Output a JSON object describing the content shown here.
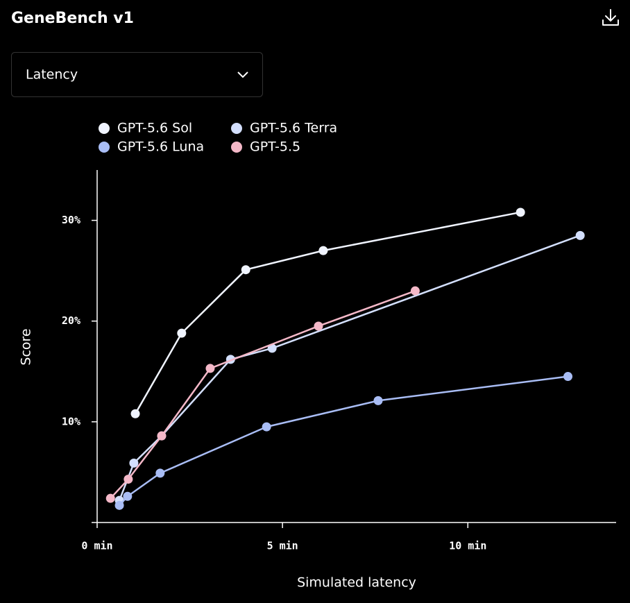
{
  "header": {
    "title": "GeneBench v1"
  },
  "dropdown": {
    "label": "Latency"
  },
  "chart_data": {
    "type": "line",
    "x_label": "Simulated latency",
    "y_label": "Score",
    "xlim": [
      0,
      14
    ],
    "ylim": [
      0,
      35
    ],
    "xticks": [
      {
        "value": 0,
        "label": "0 min"
      },
      {
        "value": 5,
        "label": "5 min"
      },
      {
        "value": 10,
        "label": "10 min"
      }
    ],
    "yticks": [
      {
        "value": 10,
        "label": "10%"
      },
      {
        "value": 20,
        "label": "20%"
      },
      {
        "value": 30,
        "label": "30%"
      }
    ],
    "series": [
      {
        "name": "GPT-5.6 Sol",
        "color": "#f0f4ff",
        "x": [
          1.03,
          2.28,
          4.01,
          6.1,
          11.42
        ],
        "values": [
          10.8,
          18.8,
          25.1,
          27.0,
          30.8
        ]
      },
      {
        "name": "GPT-5.6 Terra",
        "color": "#d3dffd",
        "x": [
          0.6,
          0.99,
          1.74,
          3.6,
          4.72,
          13.03
        ],
        "values": [
          2.2,
          5.9,
          8.6,
          16.2,
          17.3,
          28.5
        ]
      },
      {
        "name": "GPT-5.6 Luna",
        "color": "#a9bdf5",
        "x": [
          0.6,
          0.82,
          1.7,
          4.57,
          7.58,
          12.7
        ],
        "values": [
          1.7,
          2.6,
          4.9,
          9.5,
          12.1,
          14.5
        ]
      },
      {
        "name": "GPT-5.5",
        "color": "#f4b8c8",
        "x": [
          0.36,
          0.84,
          1.74,
          3.05,
          5.97,
          8.58
        ],
        "values": [
          2.4,
          4.3,
          8.6,
          15.3,
          19.5,
          23.0
        ]
      }
    ]
  }
}
